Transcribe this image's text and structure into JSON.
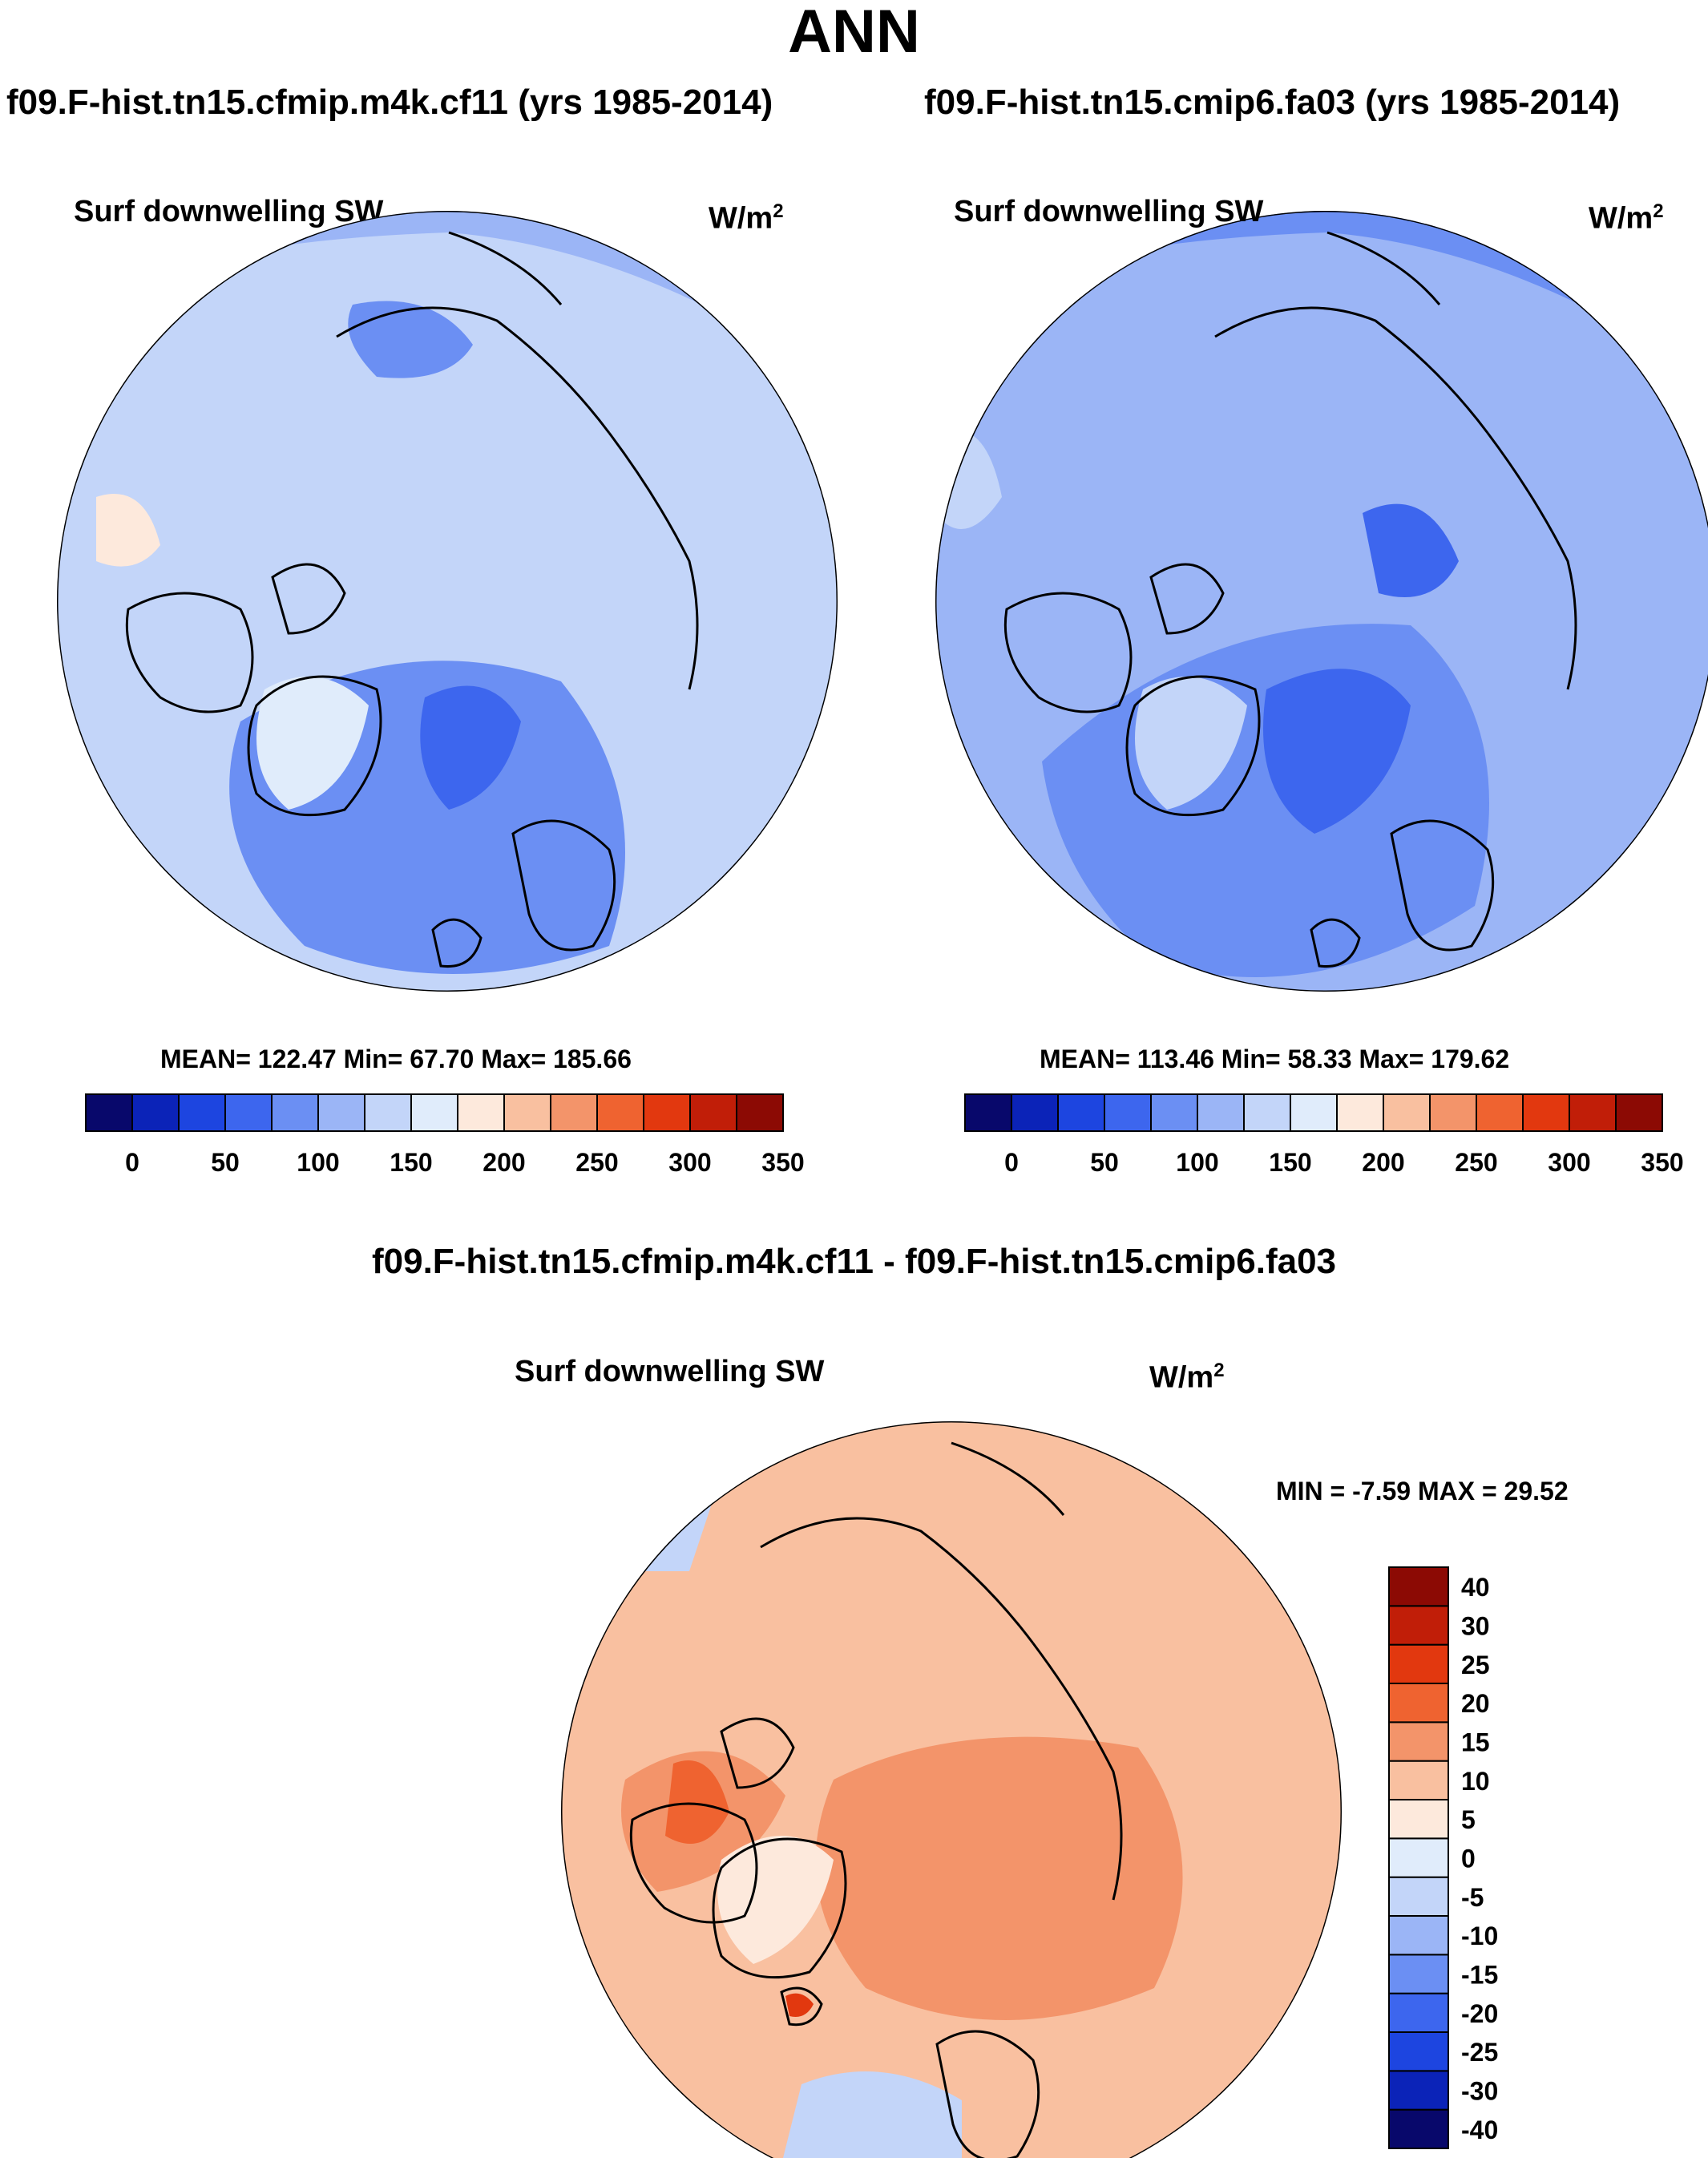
{
  "title": "ANN",
  "panels": [
    {
      "case_title": "f09.F-hist.tn15.cfmip.m4k.cf11 (yrs 1985-2014)",
      "variable": "Surf downwelling SW",
      "units_base": "W/m",
      "units_exp": "2",
      "stats_text": "MEAN= 122.47  Min=  67.70  Max= 185.66",
      "stats": {
        "mean": 122.47,
        "min": 67.7,
        "max": 185.66
      }
    },
    {
      "case_title": "f09.F-hist.tn15.cmip6.fa03 (yrs 1985-2014)",
      "variable": "Surf downwelling SW",
      "units_base": "W/m",
      "units_exp": "2",
      "stats_text": "MEAN= 113.46  Min=  58.33  Max= 179.62",
      "stats": {
        "mean": 113.46,
        "min": 58.33,
        "max": 179.62
      }
    }
  ],
  "diff_panel": {
    "title": "f09.F-hist.tn15.cfmip.m4k.cf11 - f09.F-hist.tn15.cmip6.fa03",
    "variable": "Surf downwelling SW",
    "units_base": "W/m",
    "units_exp": "2",
    "stats_text": "MIN =  -7.59 MAX =  29.52",
    "stats": {
      "min": -7.59,
      "max": 29.52
    }
  },
  "colorbars": {
    "mean": {
      "colors": [
        "#08086b",
        "#0b23b8",
        "#1d45e0",
        "#3d66ee",
        "#6b8ff3",
        "#9bb5f6",
        "#c3d5f9",
        "#e0ecfb",
        "#fde9dc",
        "#f9c0a0",
        "#f3946a",
        "#ef6330",
        "#e2380f",
        "#c11e08",
        "#8c0a04"
      ],
      "labels": [
        "0",
        "50",
        "100",
        "150",
        "200",
        "250",
        "300",
        "350"
      ]
    },
    "diff": {
      "colors": [
        "#08086b",
        "#0b23b8",
        "#1d45e0",
        "#3d66ee",
        "#6b8ff3",
        "#9bb5f6",
        "#c3d5f9",
        "#e0ecfb",
        "#fde9dc",
        "#f9c0a0",
        "#f3946a",
        "#ef6330",
        "#e2380f",
        "#c11e08",
        "#8c0a04"
      ],
      "labels": [
        "-40",
        "-30",
        "-25",
        "-20",
        "-15",
        "-10",
        "-5",
        "0",
        "5",
        "10",
        "15",
        "20",
        "25",
        "30",
        "40"
      ]
    }
  }
}
